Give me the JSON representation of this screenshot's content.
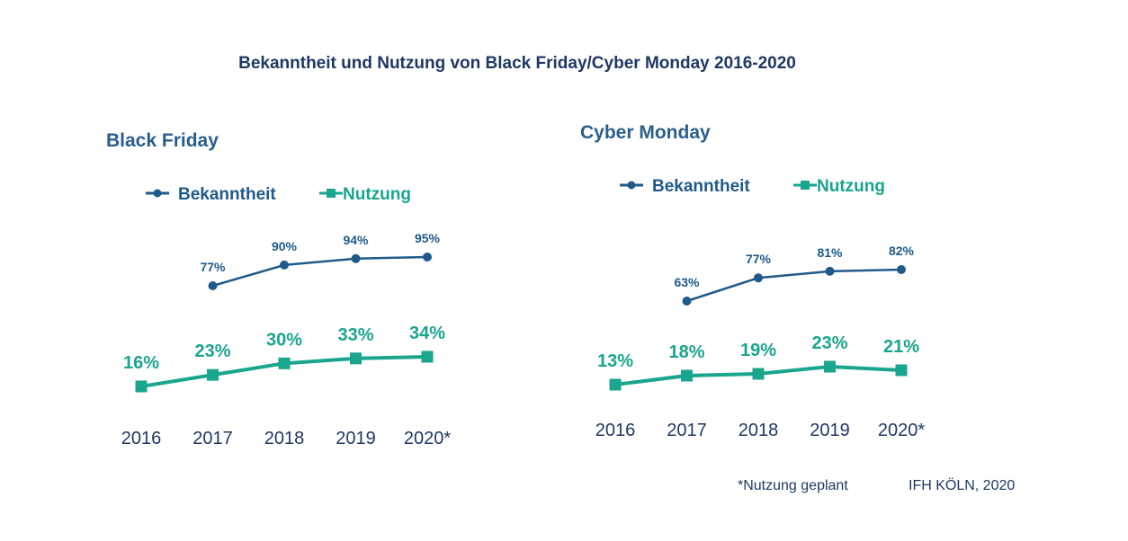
{
  "title": "Bekanntheit und Nutzung von Black Friday/Cyber Monday 2016-2020",
  "colors": {
    "bekanntheit": "#1f5a8a",
    "nutzung": "#1aa58e",
    "text": "#1f3864"
  },
  "chart_data": [
    {
      "type": "line",
      "title": "Black Friday",
      "categories": [
        "2016",
        "2017",
        "2018",
        "2019",
        "2020*"
      ],
      "series": [
        {
          "name": "Bekanntheit",
          "values": [
            null,
            77,
            90,
            94,
            95
          ],
          "labels": [
            "",
            "77%",
            "90%",
            "94%",
            "95%"
          ]
        },
        {
          "name": "Nutzung",
          "values": [
            16,
            23,
            30,
            33,
            34
          ],
          "labels": [
            "16%",
            "23%",
            "30%",
            "33%",
            "34%"
          ]
        }
      ],
      "legend": "top",
      "grid": false
    },
    {
      "type": "line",
      "title": "Cyber Monday",
      "categories": [
        "2016",
        "2017",
        "2018",
        "2019",
        "2020*"
      ],
      "series": [
        {
          "name": "Bekanntheit",
          "values": [
            null,
            63,
            77,
            81,
            82
          ],
          "labels": [
            "",
            "63%",
            "77%",
            "81%",
            "82%"
          ]
        },
        {
          "name": "Nutzung",
          "values": [
            13,
            18,
            19,
            23,
            21
          ],
          "labels": [
            "13%",
            "18%",
            "19%",
            "23%",
            "21%"
          ]
        }
      ],
      "legend": "top",
      "grid": false
    }
  ],
  "footnote": "*Nutzung geplant",
  "source": "IFH KÖLN, 2020"
}
